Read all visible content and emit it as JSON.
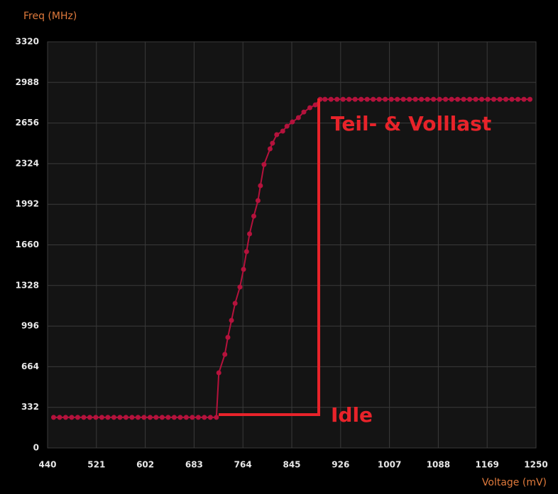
{
  "chart_data": {
    "type": "line",
    "x_label": "Voltage (mV)",
    "y_label": "Freq (MHz)",
    "xlim": [
      440,
      1250
    ],
    "xticks": [
      440,
      521,
      602,
      683,
      764,
      845,
      926,
      1007,
      1088,
      1169,
      1250
    ],
    "ylim": [
      0,
      3320
    ],
    "yticks": [
      0,
      332,
      664,
      996,
      1328,
      1660,
      1992,
      2324,
      2656,
      2988,
      3320
    ],
    "grid": true,
    "annotations": [
      "Teil- & Volllast",
      "Idle"
    ],
    "series": [
      {
        "color": "#b5123c",
        "x": [
          450,
          460,
          470,
          480,
          490,
          500,
          510,
          520,
          530,
          540,
          550,
          560,
          570,
          580,
          590,
          600,
          610,
          620,
          630,
          640,
          650,
          660,
          670,
          680,
          690,
          700,
          710,
          720,
          724,
          734,
          739,
          745,
          751,
          759,
          765,
          770,
          775,
          782,
          789,
          793,
          799,
          809,
          813,
          820,
          830,
          837,
          846,
          856,
          865,
          875,
          884,
          892,
          900,
          910,
          920,
          930,
          940,
          950,
          960,
          970,
          980,
          990,
          1000,
          1010,
          1020,
          1030,
          1040,
          1050,
          1060,
          1070,
          1080,
          1090,
          1100,
          1110,
          1120,
          1130,
          1140,
          1150,
          1160,
          1170,
          1180,
          1190,
          1200,
          1210,
          1220,
          1230,
          1240
        ],
        "values": [
          250,
          250,
          250,
          250,
          250,
          250,
          250,
          250,
          250,
          250,
          250,
          250,
          250,
          250,
          250,
          250,
          250,
          250,
          250,
          250,
          250,
          250,
          250,
          250,
          250,
          250,
          250,
          250,
          614,
          765,
          904,
          1043,
          1182,
          1315,
          1460,
          1605,
          1750,
          1895,
          2022,
          2144,
          2317,
          2445,
          2491,
          2561,
          2590,
          2630,
          2665,
          2700,
          2746,
          2781,
          2804,
          2850,
          2850,
          2850,
          2850,
          2850,
          2850,
          2850,
          2850,
          2850,
          2850,
          2850,
          2850,
          2850,
          2850,
          2850,
          2850,
          2850,
          2850,
          2850,
          2850,
          2850,
          2850,
          2850,
          2850,
          2850,
          2850,
          2850,
          2850,
          2850,
          2850,
          2850,
          2850,
          2850,
          2850,
          2850,
          2850
        ]
      }
    ]
  }
}
